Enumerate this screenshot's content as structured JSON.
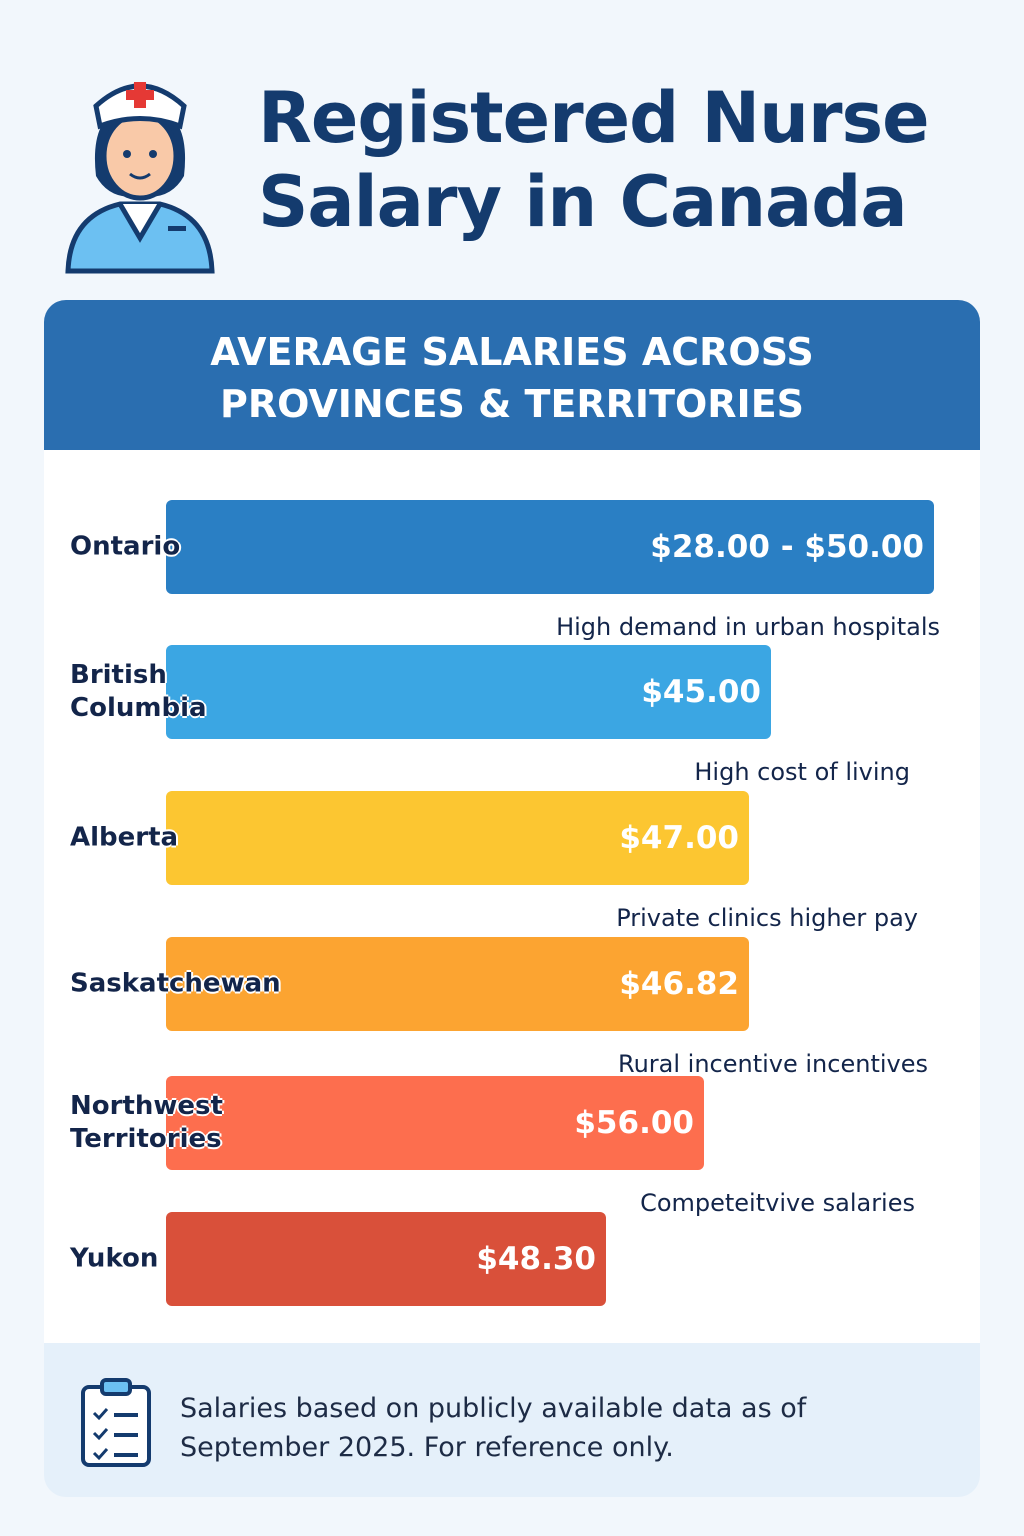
{
  "header": {
    "title": "Registered Nurse Salary in Canada"
  },
  "panel": {
    "heading": "AVERAGE SALARIES ACROSS PROVINCES & TERRITORIES",
    "rows": [
      {
        "label": "Ontario",
        "amount": "$28.00 - $50.00",
        "note": "High demand in urban hospitals"
      },
      {
        "label": "British Columbia",
        "amount": "$45.00",
        "note": "High cost of living"
      },
      {
        "label": "Alberta",
        "amount": "$47.00",
        "note": "Private clinics higher pay"
      },
      {
        "label": "Saskatchewan",
        "amount": "$46.82",
        "note": "Rural incentive incentives"
      },
      {
        "label": "Northwest Territories",
        "amount": "$56.00",
        "note": "Competeitvive salaries"
      },
      {
        "label": "Yukon",
        "amount": "$48.30"
      }
    ]
  },
  "footer": {
    "text": "Salaries based on publicly available data as of September 2025. For reference only."
  }
}
